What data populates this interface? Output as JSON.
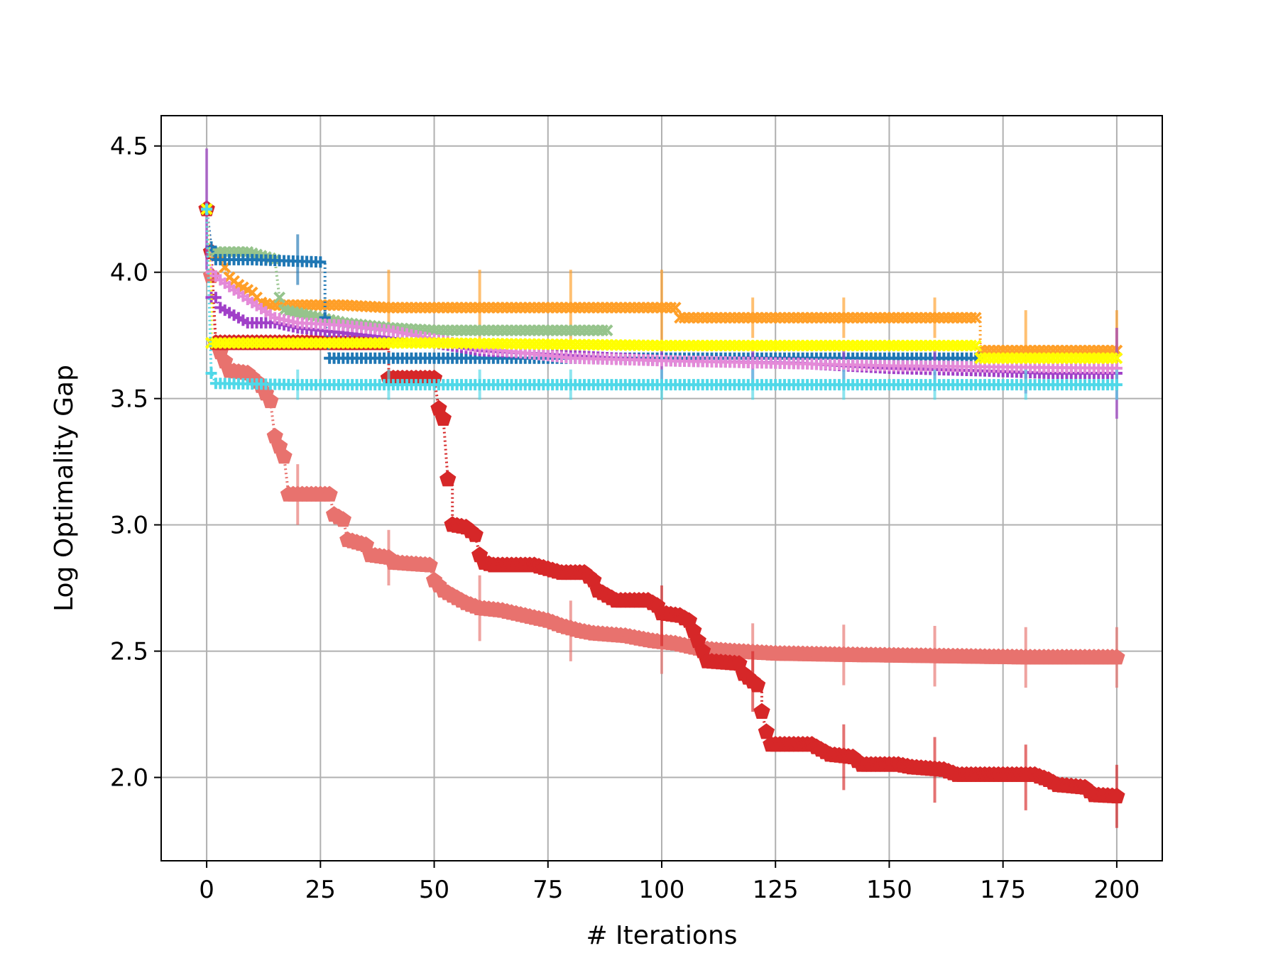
{
  "chart_data": {
    "type": "line",
    "title": "",
    "xlabel": "# Iterations",
    "ylabel": "Log Optimality Gap",
    "xlim": [
      -10,
      210
    ],
    "ylim": [
      1.67,
      4.62
    ],
    "xticks": [
      0,
      25,
      50,
      75,
      100,
      125,
      150,
      175,
      200
    ],
    "xtick_labels": [
      "0",
      "25",
      "50",
      "75",
      "100",
      "125",
      "150",
      "175",
      "200"
    ],
    "yticks": [
      2.0,
      2.5,
      3.0,
      3.5,
      4.0,
      4.5
    ],
    "ytick_labels": [
      "2.0",
      "2.5",
      "3.0",
      "3.5",
      "4.0",
      "4.5"
    ],
    "grid": true,
    "legend": "none",
    "series": [
      {
        "color": "#e8726e",
        "marker": "pentagon",
        "linestyle": "dotted",
        "points": [
          [
            0,
            4.25
          ],
          [
            2,
            3.72
          ],
          [
            5,
            3.61
          ],
          [
            9,
            3.6
          ],
          [
            12,
            3.55
          ],
          [
            14,
            3.49
          ],
          [
            15,
            3.35
          ],
          [
            17,
            3.27
          ],
          [
            18,
            3.12
          ],
          [
            27,
            3.12
          ],
          [
            28,
            3.04
          ],
          [
            30,
            3.02
          ],
          [
            31,
            2.94
          ],
          [
            35,
            2.92
          ],
          [
            36,
            2.88
          ],
          [
            40,
            2.87
          ],
          [
            41,
            2.85
          ],
          [
            49,
            2.84
          ],
          [
            50,
            2.78
          ],
          [
            52,
            2.74
          ],
          [
            55,
            2.71
          ],
          [
            57,
            2.69
          ],
          [
            60,
            2.67
          ],
          [
            65,
            2.66
          ],
          [
            70,
            2.64
          ],
          [
            75,
            2.62
          ],
          [
            78,
            2.6
          ],
          [
            82,
            2.58
          ],
          [
            85,
            2.57
          ],
          [
            92,
            2.56
          ],
          [
            98,
            2.54
          ],
          [
            103,
            2.53
          ],
          [
            108,
            2.51
          ],
          [
            115,
            2.5
          ],
          [
            125,
            2.49
          ],
          [
            140,
            2.485
          ],
          [
            160,
            2.48
          ],
          [
            180,
            2.475
          ],
          [
            200,
            2.475
          ]
        ],
        "errorbars": [
          [
            20,
            3.12,
            0.12
          ],
          [
            40,
            2.87,
            0.11
          ],
          [
            60,
            2.67,
            0.13
          ],
          [
            80,
            2.58,
            0.12
          ],
          [
            100,
            2.53,
            0.12
          ],
          [
            120,
            2.49,
            0.12
          ],
          [
            140,
            2.485,
            0.12
          ],
          [
            160,
            2.48,
            0.12
          ],
          [
            180,
            2.475,
            0.12
          ],
          [
            200,
            2.475,
            0.12
          ]
        ]
      },
      {
        "color": "#d62728",
        "marker": "pentagon",
        "linestyle": "dotted",
        "points": [
          [
            0,
            4.25
          ],
          [
            1,
            4.08
          ],
          [
            2,
            3.72
          ],
          [
            40,
            3.72
          ],
          [
            40,
            3.58
          ],
          [
            50,
            3.58
          ],
          [
            51,
            3.46
          ],
          [
            52,
            3.42
          ],
          [
            53,
            3.18
          ],
          [
            54,
            3.17
          ],
          [
            54,
            3.0
          ],
          [
            57,
            2.99
          ],
          [
            59,
            2.96
          ],
          [
            60,
            2.88
          ],
          [
            61,
            2.85
          ],
          [
            63,
            2.84
          ],
          [
            72,
            2.84
          ],
          [
            76,
            2.82
          ],
          [
            78,
            2.81
          ],
          [
            83,
            2.81
          ],
          [
            85,
            2.78
          ],
          [
            86,
            2.74
          ],
          [
            88,
            2.72
          ],
          [
            90,
            2.7
          ],
          [
            97,
            2.7
          ],
          [
            99,
            2.68
          ],
          [
            100,
            2.65
          ],
          [
            104,
            2.64
          ],
          [
            106,
            2.62
          ],
          [
            107,
            2.58
          ],
          [
            109,
            2.5
          ],
          [
            110,
            2.46
          ],
          [
            117,
            2.45
          ],
          [
            118,
            2.41
          ],
          [
            120,
            2.38
          ],
          [
            122,
            2.35
          ],
          [
            122,
            2.26
          ],
          [
            123,
            2.18
          ],
          [
            124,
            2.13
          ],
          [
            133,
            2.13
          ],
          [
            135,
            2.11
          ],
          [
            137,
            2.09
          ],
          [
            142,
            2.08
          ],
          [
            144,
            2.05
          ],
          [
            152,
            2.05
          ],
          [
            155,
            2.04
          ],
          [
            162,
            2.03
          ],
          [
            165,
            2.01
          ],
          [
            182,
            2.01
          ],
          [
            185,
            1.99
          ],
          [
            187,
            1.97
          ],
          [
            193,
            1.96
          ],
          [
            195,
            1.93
          ],
          [
            200,
            1.925
          ]
        ],
        "errorbars": [
          [
            100,
            2.64,
            0.12
          ],
          [
            120,
            2.38,
            0.12
          ],
          [
            140,
            2.08,
            0.13
          ],
          [
            160,
            2.03,
            0.13
          ],
          [
            180,
            2.0,
            0.13
          ],
          [
            200,
            1.925,
            0.125
          ]
        ]
      },
      {
        "color": "#ff9f28",
        "marker": "x",
        "linestyle": "dotted",
        "points": [
          [
            0,
            4.25
          ],
          [
            1,
            4.08
          ],
          [
            3,
            4.07
          ],
          [
            4,
            4.02
          ],
          [
            5,
            3.98
          ],
          [
            7,
            3.95
          ],
          [
            10,
            3.92
          ],
          [
            11,
            3.9
          ],
          [
            12,
            3.88
          ],
          [
            14,
            3.87
          ],
          [
            30,
            3.87
          ],
          [
            40,
            3.86
          ],
          [
            50,
            3.86
          ],
          [
            100,
            3.86
          ],
          [
            103,
            3.86
          ],
          [
            104,
            3.82
          ],
          [
            170,
            3.82
          ],
          [
            170,
            3.69
          ],
          [
            200,
            3.69
          ]
        ],
        "errorbars": [
          [
            40,
            3.86,
            0.15
          ],
          [
            60,
            3.86,
            0.15
          ],
          [
            80,
            3.86,
            0.15
          ],
          [
            100,
            3.86,
            0.15
          ],
          [
            120,
            3.82,
            0.08
          ],
          [
            140,
            3.82,
            0.08
          ],
          [
            160,
            3.82,
            0.08
          ],
          [
            180,
            3.69,
            0.16
          ],
          [
            200,
            3.69,
            0.16
          ]
        ]
      },
      {
        "color": "#96c48c",
        "marker": "x",
        "linestyle": "dotted",
        "points": [
          [
            0,
            4.25
          ],
          [
            1,
            4.08
          ],
          [
            9,
            4.08
          ],
          [
            15,
            4.05
          ],
          [
            16,
            3.9
          ],
          [
            17,
            3.85
          ],
          [
            30,
            3.8
          ],
          [
            40,
            3.78
          ],
          [
            50,
            3.77
          ],
          [
            88,
            3.77
          ]
        ],
        "errorbars": []
      },
      {
        "color": "#1f77b4",
        "marker": "plus",
        "linestyle": "dotted",
        "points": [
          [
            0,
            4.25
          ],
          [
            1,
            4.1
          ],
          [
            2,
            4.05
          ],
          [
            10,
            4.05
          ],
          [
            26,
            4.04
          ],
          [
            26,
            3.82
          ],
          [
            27,
            3.66
          ],
          [
            60,
            3.66
          ],
          [
            100,
            3.66
          ],
          [
            170,
            3.66
          ]
        ],
        "errorbars": [
          [
            20,
            4.05,
            0.1
          ]
        ]
      },
      {
        "color": "#a040c8",
        "marker": "plus",
        "linestyle": "dotted",
        "points": [
          [
            0,
            4.25
          ],
          [
            1,
            3.9
          ],
          [
            2,
            3.9
          ],
          [
            3,
            3.86
          ],
          [
            5,
            3.84
          ],
          [
            7,
            3.82
          ],
          [
            9,
            3.8
          ],
          [
            15,
            3.8
          ],
          [
            20,
            3.78
          ],
          [
            30,
            3.76
          ],
          [
            40,
            3.74
          ],
          [
            50,
            3.72
          ],
          [
            60,
            3.69
          ],
          [
            80,
            3.67
          ],
          [
            100,
            3.65
          ],
          [
            130,
            3.64
          ],
          [
            150,
            3.62
          ],
          [
            170,
            3.61
          ],
          [
            185,
            3.6
          ],
          [
            200,
            3.6
          ]
        ],
        "errorbars": [
          [
            0,
            4.25,
            0.24
          ],
          [
            100,
            3.65,
            0.08
          ],
          [
            120,
            3.64,
            0.08
          ],
          [
            140,
            3.62,
            0.08
          ],
          [
            160,
            3.61,
            0.08
          ],
          [
            180,
            3.6,
            0.08
          ],
          [
            200,
            3.6,
            0.18
          ]
        ]
      },
      {
        "color": "#e48ad8",
        "marker": "plus",
        "linestyle": "dotted",
        "points": [
          [
            0,
            4.25
          ],
          [
            1,
            4.0
          ],
          [
            3,
            3.97
          ],
          [
            6,
            3.93
          ],
          [
            10,
            3.88
          ],
          [
            15,
            3.82
          ],
          [
            20,
            3.8
          ],
          [
            30,
            3.79
          ],
          [
            40,
            3.77
          ],
          [
            60,
            3.7
          ],
          [
            80,
            3.66
          ],
          [
            100,
            3.65
          ],
          [
            150,
            3.63
          ],
          [
            200,
            3.62
          ]
        ],
        "errorbars": []
      },
      {
        "color": "#ffff00",
        "marker": "x",
        "linestyle": "dotted",
        "points": [
          [
            0,
            4.25
          ],
          [
            1,
            3.9
          ],
          [
            1,
            3.72
          ],
          [
            50,
            3.72
          ],
          [
            100,
            3.71
          ],
          [
            170,
            3.71
          ],
          [
            170,
            3.66
          ],
          [
            200,
            3.66
          ]
        ],
        "errorbars": []
      },
      {
        "color": "#4fd8e8",
        "marker": "plus",
        "linestyle": "dotted",
        "points": [
          [
            0,
            4.25
          ],
          [
            1,
            3.6
          ],
          [
            2,
            3.56
          ],
          [
            20,
            3.555
          ],
          [
            60,
            3.555
          ],
          [
            100,
            3.555
          ],
          [
            150,
            3.555
          ],
          [
            200,
            3.555
          ]
        ],
        "errorbars": [
          [
            20,
            3.555,
            0.06
          ],
          [
            40,
            3.555,
            0.06
          ],
          [
            60,
            3.555,
            0.06
          ],
          [
            80,
            3.555,
            0.06
          ],
          [
            100,
            3.555,
            0.06
          ],
          [
            120,
            3.555,
            0.06
          ],
          [
            140,
            3.555,
            0.06
          ],
          [
            160,
            3.555,
            0.06
          ],
          [
            180,
            3.555,
            0.06
          ],
          [
            200,
            3.555,
            0.06
          ]
        ]
      }
    ]
  }
}
